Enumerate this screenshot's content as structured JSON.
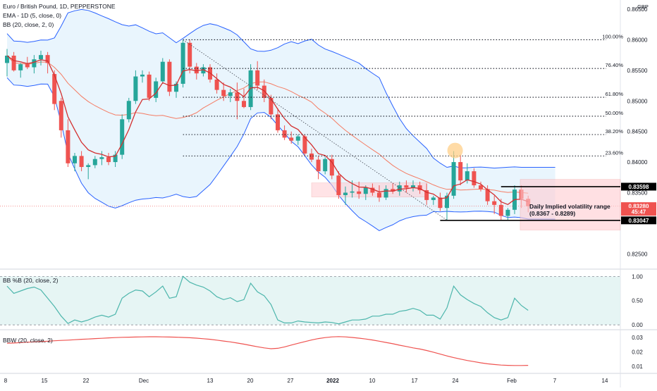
{
  "chart_data": {
    "type": "candlestick",
    "title": "Euro / British Pound, 1D, PEPPERSTONE",
    "indicators": [
      "EMA - 1D (5, close, 0)",
      "BB (20, close, 2, 0)"
    ],
    "currency": "GBP",
    "y_ticks": [
      "0.86500",
      "0.86000",
      "0.85500",
      "0.85000",
      "0.84500",
      "0.84000",
      "0.83500",
      "0.82500"
    ],
    "y_range": [
      0.8225,
      0.8665
    ],
    "x_ticks": [
      "8",
      "15",
      "22",
      "Dec",
      "13",
      "20",
      "27",
      "2022",
      "10",
      "17",
      "24",
      "Feb",
      "7",
      "14"
    ],
    "fib_levels": [
      {
        "label": "100.00%",
        "value": 0.86
      },
      {
        "label": "76.40%",
        "value": 0.8553
      },
      {
        "label": "61.80%",
        "value": 0.8506
      },
      {
        "label": "50.00%",
        "value": 0.8475
      },
      {
        "label": "38.20%",
        "value": 0.8445
      },
      {
        "label": "23.60%",
        "value": 0.841
      }
    ],
    "price_labels": [
      {
        "text": "0.83598",
        "value": 0.83598
      },
      {
        "text": "0.83280",
        "value": 0.8328
      },
      {
        "text": "45:47",
        "value": 0.83187
      },
      {
        "text": "0.83047",
        "value": 0.83047
      }
    ],
    "annotation": {
      "line1": "Daily Implied volatility range",
      "line2": "(0.8367 - 0.8289)"
    },
    "candles": [
      {
        "o": 0.8562,
        "h": 0.8585,
        "l": 0.854,
        "c": 0.8574
      },
      {
        "o": 0.8574,
        "h": 0.858,
        "l": 0.8548,
        "c": 0.855
      },
      {
        "o": 0.855,
        "h": 0.8562,
        "l": 0.8538,
        "c": 0.856
      },
      {
        "o": 0.856,
        "h": 0.8572,
        "l": 0.8552,
        "c": 0.8555
      },
      {
        "o": 0.8555,
        "h": 0.8575,
        "l": 0.8545,
        "c": 0.8568
      },
      {
        "o": 0.8568,
        "h": 0.8582,
        "l": 0.8558,
        "c": 0.8575
      },
      {
        "o": 0.8575,
        "h": 0.858,
        "l": 0.8545,
        "c": 0.8562
      },
      {
        "o": 0.8544,
        "h": 0.855,
        "l": 0.8485,
        "c": 0.8495
      },
      {
        "o": 0.85,
        "h": 0.8505,
        "l": 0.844,
        "c": 0.8452
      },
      {
        "o": 0.8452,
        "h": 0.847,
        "l": 0.8392,
        "c": 0.8398
      },
      {
        "o": 0.8398,
        "h": 0.8415,
        "l": 0.8385,
        "c": 0.841
      },
      {
        "o": 0.841,
        "h": 0.8418,
        "l": 0.8385,
        "c": 0.8392
      },
      {
        "o": 0.8392,
        "h": 0.8398,
        "l": 0.8372,
        "c": 0.8395
      },
      {
        "o": 0.8395,
        "h": 0.841,
        "l": 0.839,
        "c": 0.8405
      },
      {
        "o": 0.8405,
        "h": 0.8418,
        "l": 0.8395,
        "c": 0.8408
      },
      {
        "o": 0.8408,
        "h": 0.8415,
        "l": 0.8395,
        "c": 0.84
      },
      {
        "o": 0.84,
        "h": 0.8418,
        "l": 0.8392,
        "c": 0.8412
      },
      {
        "o": 0.8412,
        "h": 0.8478,
        "l": 0.8405,
        "c": 0.847
      },
      {
        "o": 0.847,
        "h": 0.8505,
        "l": 0.8465,
        "c": 0.85
      },
      {
        "o": 0.85,
        "h": 0.855,
        "l": 0.8495,
        "c": 0.854
      },
      {
        "o": 0.854,
        "h": 0.855,
        "l": 0.853,
        "c": 0.8543
      },
      {
        "o": 0.8543,
        "h": 0.8548,
        "l": 0.85,
        "c": 0.8505
      },
      {
        "o": 0.8505,
        "h": 0.8538,
        "l": 0.8498,
        "c": 0.8532
      },
      {
        "o": 0.8532,
        "h": 0.857,
        "l": 0.8528,
        "c": 0.8564
      },
      {
        "o": 0.8564,
        "h": 0.8568,
        "l": 0.8508,
        "c": 0.8515
      },
      {
        "o": 0.8515,
        "h": 0.8532,
        "l": 0.8505,
        "c": 0.8528
      },
      {
        "o": 0.8528,
        "h": 0.86,
        "l": 0.8522,
        "c": 0.8595
      },
      {
        "o": 0.8595,
        "h": 0.86,
        "l": 0.8545,
        "c": 0.8556
      },
      {
        "o": 0.8556,
        "h": 0.8562,
        "l": 0.8535,
        "c": 0.8545
      },
      {
        "o": 0.8545,
        "h": 0.856,
        "l": 0.854,
        "c": 0.8555
      },
      {
        "o": 0.8555,
        "h": 0.856,
        "l": 0.853,
        "c": 0.8535
      },
      {
        "o": 0.8535,
        "h": 0.8545,
        "l": 0.8512,
        "c": 0.8518
      },
      {
        "o": 0.8518,
        "h": 0.853,
        "l": 0.85,
        "c": 0.8508
      },
      {
        "o": 0.8508,
        "h": 0.852,
        "l": 0.8498,
        "c": 0.8514
      },
      {
        "o": 0.8514,
        "h": 0.853,
        "l": 0.847,
        "c": 0.85
      },
      {
        "o": 0.85,
        "h": 0.852,
        "l": 0.8488,
        "c": 0.849
      },
      {
        "o": 0.849,
        "h": 0.856,
        "l": 0.8485,
        "c": 0.855
      },
      {
        "o": 0.855,
        "h": 0.8565,
        "l": 0.8518,
        "c": 0.8525
      },
      {
        "o": 0.8525,
        "h": 0.8535,
        "l": 0.8498,
        "c": 0.8505
      },
      {
        "o": 0.8505,
        "h": 0.851,
        "l": 0.847,
        "c": 0.8478
      },
      {
        "o": 0.8478,
        "h": 0.8488,
        "l": 0.8448,
        "c": 0.8452
      },
      {
        "o": 0.8452,
        "h": 0.846,
        "l": 0.8436,
        "c": 0.844
      },
      {
        "o": 0.844,
        "h": 0.845,
        "l": 0.843,
        "c": 0.8435
      },
      {
        "o": 0.8435,
        "h": 0.8445,
        "l": 0.8428,
        "c": 0.8442
      },
      {
        "o": 0.8442,
        "h": 0.8445,
        "l": 0.841,
        "c": 0.8414
      },
      {
        "o": 0.8414,
        "h": 0.8422,
        "l": 0.84,
        "c": 0.8404
      },
      {
        "o": 0.8404,
        "h": 0.841,
        "l": 0.8372,
        "c": 0.8385
      },
      {
        "o": 0.8385,
        "h": 0.8408,
        "l": 0.838,
        "c": 0.8405
      },
      {
        "o": 0.8405,
        "h": 0.8412,
        "l": 0.8372,
        "c": 0.8378
      },
      {
        "o": 0.8378,
        "h": 0.8385,
        "l": 0.834,
        "c": 0.8346
      },
      {
        "o": 0.8346,
        "h": 0.836,
        "l": 0.833,
        "c": 0.835
      },
      {
        "o": 0.835,
        "h": 0.837,
        "l": 0.8342,
        "c": 0.8352
      },
      {
        "o": 0.8352,
        "h": 0.8368,
        "l": 0.834,
        "c": 0.8348
      },
      {
        "o": 0.8348,
        "h": 0.8362,
        "l": 0.8338,
        "c": 0.8358
      },
      {
        "o": 0.8358,
        "h": 0.8365,
        "l": 0.8345,
        "c": 0.835
      },
      {
        "o": 0.835,
        "h": 0.8362,
        "l": 0.8335,
        "c": 0.8342
      },
      {
        "o": 0.8342,
        "h": 0.8362,
        "l": 0.8338,
        "c": 0.8356
      },
      {
        "o": 0.8356,
        "h": 0.8365,
        "l": 0.8348,
        "c": 0.8352
      },
      {
        "o": 0.8352,
        "h": 0.8368,
        "l": 0.8345,
        "c": 0.8362
      },
      {
        "o": 0.8362,
        "h": 0.837,
        "l": 0.835,
        "c": 0.8358
      },
      {
        "o": 0.8358,
        "h": 0.837,
        "l": 0.8352,
        "c": 0.8362
      },
      {
        "o": 0.8362,
        "h": 0.8368,
        "l": 0.8348,
        "c": 0.8354
      },
      {
        "o": 0.8354,
        "h": 0.8365,
        "l": 0.833,
        "c": 0.8338
      },
      {
        "o": 0.8338,
        "h": 0.8345,
        "l": 0.833,
        "c": 0.8342
      },
      {
        "o": 0.8342,
        "h": 0.835,
        "l": 0.832,
        "c": 0.8325
      },
      {
        "o": 0.8325,
        "h": 0.835,
        "l": 0.8305,
        "c": 0.8345
      },
      {
        "o": 0.8345,
        "h": 0.8418,
        "l": 0.834,
        "c": 0.84
      },
      {
        "o": 0.84,
        "h": 0.8412,
        "l": 0.8362,
        "c": 0.837
      },
      {
        "o": 0.837,
        "h": 0.8398,
        "l": 0.8365,
        "c": 0.8385
      },
      {
        "o": 0.8385,
        "h": 0.839,
        "l": 0.8358,
        "c": 0.8362
      },
      {
        "o": 0.8362,
        "h": 0.8368,
        "l": 0.8352,
        "c": 0.8356
      },
      {
        "o": 0.8356,
        "h": 0.8362,
        "l": 0.833,
        "c": 0.8336
      },
      {
        "o": 0.8336,
        "h": 0.8345,
        "l": 0.8315,
        "c": 0.833
      },
      {
        "o": 0.833,
        "h": 0.834,
        "l": 0.8305,
        "c": 0.8312
      },
      {
        "o": 0.8312,
        "h": 0.8325,
        "l": 0.8305,
        "c": 0.8322
      },
      {
        "o": 0.8322,
        "h": 0.8362,
        "l": 0.8315,
        "c": 0.8355
      },
      {
        "o": 0.8355,
        "h": 0.8362,
        "l": 0.8325,
        "c": 0.834
      },
      {
        "o": 0.834,
        "h": 0.8345,
        "l": 0.8318,
        "c": 0.8328
      }
    ],
    "bb_pct_b": {
      "title": "BB %B (20, close, 2)",
      "y_ticks": [
        "1.00",
        "0.50",
        "0.00"
      ],
      "y_range": [
        -0.1,
        1.15
      ],
      "values": [
        0.8,
        0.65,
        0.7,
        0.75,
        0.78,
        0.72,
        0.55,
        0.38,
        0.18,
        0.03,
        0.1,
        0.06,
        0.1,
        0.16,
        0.2,
        0.16,
        0.22,
        0.55,
        0.65,
        0.72,
        0.7,
        0.58,
        0.68,
        0.8,
        0.55,
        0.58,
        1.0,
        0.88,
        0.82,
        0.78,
        0.7,
        0.58,
        0.52,
        0.56,
        0.48,
        0.52,
        0.86,
        0.68,
        0.6,
        0.42,
        0.1,
        0.04,
        0.04,
        0.08,
        0.06,
        0.05,
        0.04,
        0.06,
        0.05,
        0.02,
        0.06,
        0.1,
        0.1,
        0.12,
        0.18,
        0.18,
        0.22,
        0.22,
        0.28,
        0.3,
        0.34,
        0.3,
        0.2,
        0.2,
        0.12,
        0.35,
        0.8,
        0.62,
        0.52,
        0.44,
        0.38,
        0.25,
        0.15,
        0.1,
        0.15,
        0.55,
        0.4,
        0.3
      ]
    },
    "bbw": {
      "title": "BBW (20, close, 2)",
      "y_ticks": [
        "0.03",
        "0.02",
        "0.01"
      ],
      "y_range": [
        0.005,
        0.0355
      ],
      "values": [
        0.026,
        0.0262,
        0.0265,
        0.0268,
        0.027,
        0.0272,
        0.0275,
        0.0278,
        0.028,
        0.0282,
        0.0285,
        0.0288,
        0.029,
        0.0293,
        0.0295,
        0.0298,
        0.03,
        0.0302,
        0.0303,
        0.0304,
        0.0305,
        0.0306,
        0.0306,
        0.0305,
        0.0304,
        0.0303,
        0.0301,
        0.0299,
        0.0296,
        0.0292,
        0.0288,
        0.0282,
        0.0276,
        0.027,
        0.0262,
        0.0254,
        0.0245,
        0.0236,
        0.0228,
        0.0222,
        0.0225,
        0.0235,
        0.0248,
        0.026,
        0.0272,
        0.0283,
        0.0293,
        0.03,
        0.0305,
        0.0307,
        0.0305,
        0.0301,
        0.0296,
        0.029,
        0.0283,
        0.0275,
        0.0266,
        0.0257,
        0.0247,
        0.0238,
        0.0228,
        0.022,
        0.021,
        0.0198,
        0.0185,
        0.0172,
        0.016,
        0.015,
        0.014,
        0.0132,
        0.0124,
        0.0117,
        0.0112,
        0.0108,
        0.0106,
        0.0105,
        0.0105,
        0.0106
      ]
    }
  },
  "colors": {
    "up": "#26a69a",
    "down": "#ef5350",
    "bb_band": "#2962ff",
    "bb_fill": "#e3f2fd",
    "bb_basis": "#f57c64",
    "ema": "#d32f2f",
    "pctb_line": "#4db6ac",
    "pctb_fill": "#e0f2f1",
    "bbw_line": "#ef5350",
    "highlight": "#ffcdd2"
  }
}
